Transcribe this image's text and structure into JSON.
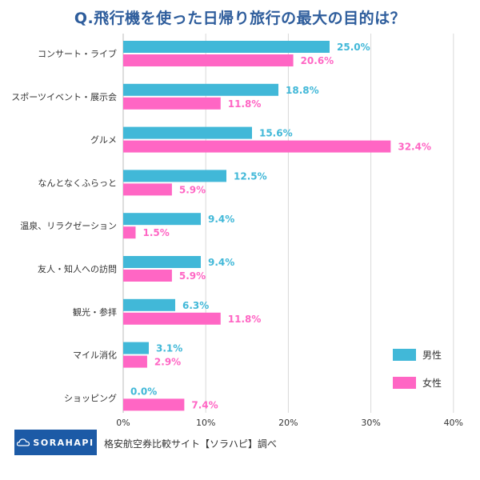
{
  "chart_data": {
    "type": "bar",
    "orientation": "horizontal",
    "title": "Q.飛行機を使った日帰り旅行の最大の目的は？",
    "categories": [
      "コンサート・ライブ",
      "スポーツイベント・展示会",
      "グルメ",
      "なんとなくふらっと",
      "温泉、リラクゼーション",
      "友人・知人への訪問",
      "観光・参拝",
      "マイル消化",
      "ショッピング"
    ],
    "series": [
      {
        "name": "男性",
        "color": "#41b8d8",
        "values": [
          25.0,
          18.8,
          15.6,
          12.5,
          9.4,
          9.4,
          6.3,
          3.1,
          0.0
        ]
      },
      {
        "name": "女性",
        "color": "#ff66c4",
        "values": [
          20.6,
          11.8,
          32.4,
          5.9,
          1.5,
          5.9,
          11.8,
          2.9,
          7.4
        ]
      }
    ],
    "x_ticks": [
      "0%",
      "10%",
      "20%",
      "30%",
      "40%"
    ],
    "xlim": [
      0,
      40
    ],
    "grid": true,
    "legend_position": "bottom-right"
  },
  "footer": {
    "logo_text": "SORAHAPI",
    "source": "格安航空券比較サイト【ソラハピ】調べ"
  }
}
